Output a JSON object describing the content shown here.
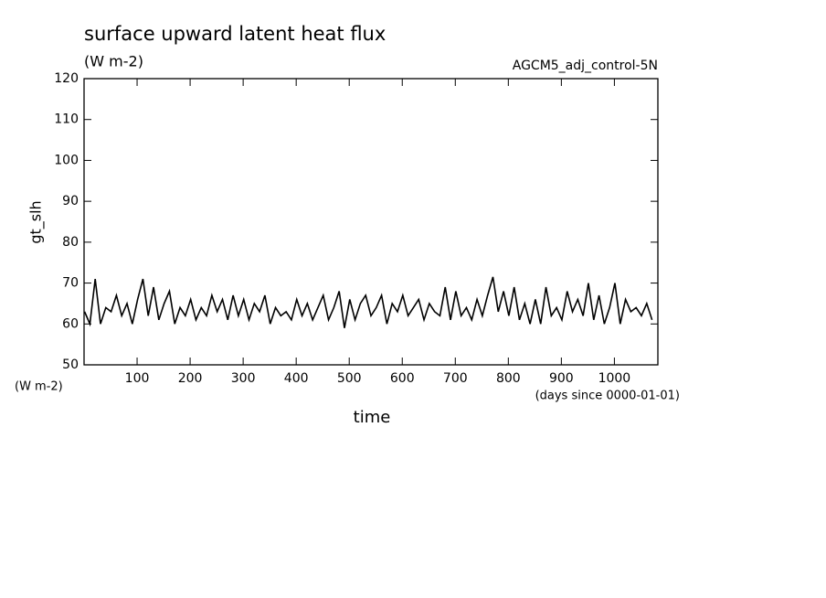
{
  "chart_data": {
    "type": "line",
    "title": "surface upward latent heat flux",
    "subtitle": "(W m-2)",
    "annotation": "AGCM5_adj_control-5N",
    "y_label": "gt_slh",
    "y_units": "(W m-2)",
    "x_label": "time",
    "x_units": "(days since 0000-01-01)",
    "x": [
      1,
      11,
      21,
      31,
      41,
      51,
      61,
      71,
      81,
      91,
      101,
      111,
      121,
      131,
      141,
      151,
      161,
      171,
      181,
      191,
      201,
      211,
      221,
      231,
      241,
      251,
      261,
      271,
      281,
      291,
      301,
      311,
      321,
      331,
      341,
      351,
      361,
      371,
      381,
      391,
      401,
      411,
      421,
      431,
      441,
      451,
      461,
      471,
      481,
      491,
      501,
      511,
      521,
      531,
      541,
      551,
      561,
      571,
      581,
      591,
      601,
      611,
      621,
      631,
      641,
      651,
      661,
      671,
      681,
      691,
      701,
      711,
      721,
      731,
      741,
      751,
      761,
      771,
      781,
      791,
      801,
      811,
      821,
      831,
      841,
      851,
      861,
      871,
      881,
      891,
      901,
      911,
      921,
      931,
      941,
      951,
      961,
      971,
      981,
      991,
      1001,
      1011,
      1021,
      1031,
      1041,
      1051,
      1061,
      1071
    ],
    "series": [
      {
        "name": "gt_slh",
        "color": "#000000",
        "values": [
          63,
          60,
          71,
          60,
          64,
          63,
          67,
          62,
          65,
          60,
          66,
          71,
          62,
          69,
          61,
          65,
          68,
          60,
          64,
          62,
          66,
          61,
          64,
          62,
          67,
          63,
          66,
          61,
          67,
          62,
          66,
          61,
          65,
          63,
          67,
          60,
          64,
          62,
          63,
          61,
          66,
          62,
          65,
          61,
          64,
          67,
          61,
          64,
          68,
          59,
          66,
          61,
          65,
          67,
          62,
          64,
          67,
          60,
          65,
          63,
          67,
          62,
          64,
          66,
          61,
          65,
          63,
          62,
          69,
          61,
          68,
          62,
          64,
          61,
          66,
          62,
          67,
          71.5,
          63,
          68,
          62,
          69,
          61,
          65,
          60,
          66,
          60,
          69,
          62,
          64,
          61,
          68,
          63,
          66,
          62,
          70,
          61,
          67,
          60,
          64,
          70,
          60,
          66,
          63,
          64,
          62,
          65,
          61
        ]
      }
    ],
    "xlim": [
      0,
      1082
    ],
    "ylim": [
      50,
      120
    ],
    "xticks": [
      100,
      200,
      300,
      400,
      500,
      600,
      700,
      800,
      900,
      1000
    ],
    "yticks": [
      50,
      60,
      70,
      80,
      90,
      100,
      110,
      120
    ]
  }
}
